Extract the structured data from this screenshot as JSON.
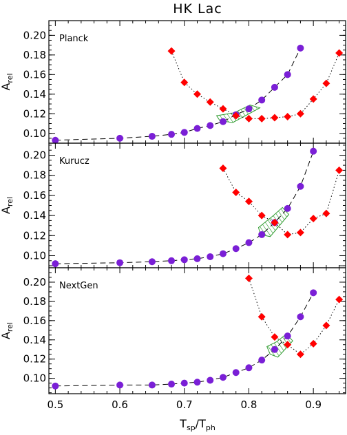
{
  "figure": {
    "title": "HK Lac",
    "xlabel_main": "T",
    "xlabel_sub1": "sp",
    "xlabel_sep": "/T",
    "xlabel_sub2": "ph",
    "ylabel_main": "A",
    "ylabel_sub": "rel"
  },
  "colors": {
    "circle": "#7a1fd6",
    "diamond": "#ff0000",
    "hatch": "#2e9b2e",
    "hatch_fill": "#ffffff"
  },
  "chart_data": [
    {
      "type": "scatter",
      "panel_label": "Planck",
      "xlim": [
        0.49,
        0.95
      ],
      "ylim": [
        0.09,
        0.215
      ],
      "xticks": [
        0.5,
        0.6,
        0.7,
        0.8,
        0.9
      ],
      "yticks": [
        0.1,
        0.12,
        0.14,
        0.16,
        0.18,
        0.2
      ],
      "ytick_labels": [
        "0.10",
        "0.12",
        "0.14",
        "0.16",
        "0.18",
        "0.20"
      ],
      "series": [
        {
          "marker": "circle",
          "line": "dashed",
          "x": [
            0.5,
            0.6,
            0.65,
            0.68,
            0.7,
            0.72,
            0.74,
            0.76,
            0.78,
            0.8,
            0.82,
            0.84,
            0.86,
            0.88
          ],
          "y": [
            0.093,
            0.095,
            0.097,
            0.099,
            0.101,
            0.105,
            0.108,
            0.112,
            0.119,
            0.125,
            0.134,
            0.147,
            0.16,
            0.187
          ]
        },
        {
          "marker": "diamond",
          "line": "dotted",
          "x": [
            0.68,
            0.7,
            0.72,
            0.74,
            0.76,
            0.78,
            0.8,
            0.82,
            0.84,
            0.86,
            0.88,
            0.9,
            0.92,
            0.94
          ],
          "y": [
            0.184,
            0.152,
            0.14,
            0.132,
            0.125,
            0.118,
            0.115,
            0.115,
            0.116,
            0.117,
            0.12,
            0.135,
            0.151,
            0.182
          ]
        }
      ],
      "region": [
        [
          0.755,
          0.113
        ],
        [
          0.775,
          0.111
        ],
        [
          0.817,
          0.126
        ],
        [
          0.802,
          0.129
        ],
        [
          0.777,
          0.121
        ],
        [
          0.75,
          0.118
        ]
      ]
    },
    {
      "type": "scatter",
      "panel_label": "Kurucz",
      "xlim": [
        0.49,
        0.95
      ],
      "ylim": [
        0.088,
        0.212
      ],
      "xticks": [
        0.5,
        0.6,
        0.7,
        0.8,
        0.9
      ],
      "yticks": [
        0.09,
        0.1,
        0.12,
        0.14,
        0.16,
        0.18,
        0.2
      ],
      "ytick_labels": [
        "",
        "0.10",
        "0.12",
        "0.14",
        "0.16",
        "0.18",
        "0.20"
      ],
      "series": [
        {
          "marker": "circle",
          "line": "dashed",
          "x": [
            0.5,
            0.6,
            0.65,
            0.68,
            0.7,
            0.72,
            0.74,
            0.76,
            0.78,
            0.8,
            0.82,
            0.84,
            0.86,
            0.88,
            0.9
          ],
          "y": [
            0.092,
            0.093,
            0.094,
            0.095,
            0.096,
            0.097,
            0.099,
            0.102,
            0.107,
            0.113,
            0.121,
            0.133,
            0.147,
            0.169,
            0.204
          ]
        },
        {
          "marker": "diamond",
          "line": "dotted",
          "x": [
            0.76,
            0.78,
            0.8,
            0.82,
            0.84,
            0.86,
            0.88,
            0.9,
            0.92,
            0.94
          ],
          "y": [
            0.187,
            0.163,
            0.154,
            0.14,
            0.133,
            0.121,
            0.123,
            0.137,
            0.142,
            0.185
          ]
        }
      ],
      "region": [
        [
          0.818,
          0.121
        ],
        [
          0.833,
          0.119
        ],
        [
          0.862,
          0.141
        ],
        [
          0.852,
          0.148
        ],
        [
          0.838,
          0.14
        ],
        [
          0.815,
          0.128
        ]
      ]
    },
    {
      "type": "scatter",
      "panel_label": "NextGen",
      "xlim": [
        0.49,
        0.95
      ],
      "ylim": [
        0.084,
        0.215
      ],
      "xticks": [
        0.5,
        0.6,
        0.7,
        0.8,
        0.9
      ],
      "xtick_labels": [
        "0.5",
        "0.6",
        "0.7",
        "0.8",
        "0.9"
      ],
      "yticks": [
        0.1,
        0.12,
        0.14,
        0.16,
        0.18,
        0.2
      ],
      "ytick_labels": [
        "0.10",
        "0.12",
        "0.14",
        "0.16",
        "0.18",
        "0.20"
      ],
      "series": [
        {
          "marker": "circle",
          "line": "dashed",
          "x": [
            0.5,
            0.6,
            0.65,
            0.68,
            0.7,
            0.72,
            0.74,
            0.76,
            0.78,
            0.8,
            0.82,
            0.84,
            0.86,
            0.88,
            0.9
          ],
          "y": [
            0.092,
            0.093,
            0.093,
            0.094,
            0.095,
            0.096,
            0.098,
            0.101,
            0.106,
            0.111,
            0.119,
            0.13,
            0.144,
            0.164,
            0.189
          ]
        },
        {
          "marker": "diamond",
          "line": "dotted",
          "x": [
            0.8,
            0.82,
            0.84,
            0.86,
            0.88,
            0.9,
            0.92,
            0.94
          ],
          "y": [
            0.204,
            0.164,
            0.143,
            0.135,
            0.125,
            0.136,
            0.155,
            0.182
          ]
        }
      ],
      "region": [
        [
          0.833,
          0.125
        ],
        [
          0.845,
          0.122
        ],
        [
          0.868,
          0.139
        ],
        [
          0.858,
          0.146
        ],
        [
          0.843,
          0.138
        ],
        [
          0.828,
          0.133
        ]
      ]
    }
  ]
}
